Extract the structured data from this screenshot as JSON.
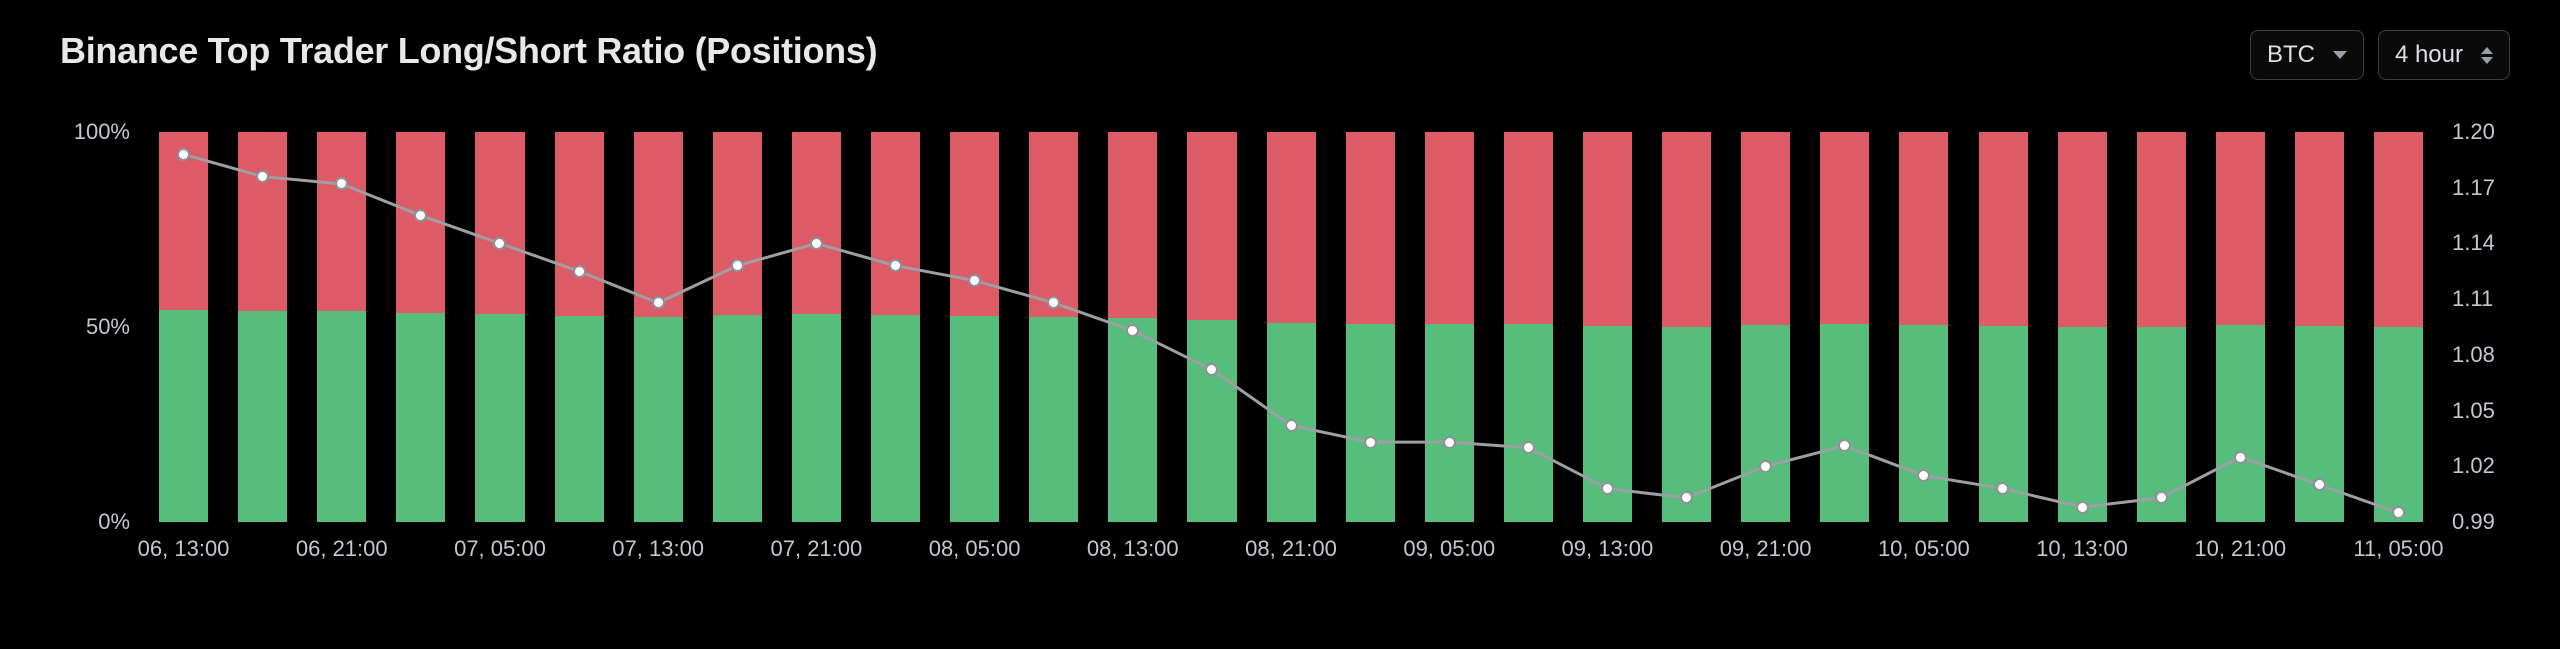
{
  "title": "Binance Top Trader Long/Short Ratio (Positions)",
  "controls": {
    "asset": "BTC",
    "interval": "4 hour"
  },
  "chart": {
    "type": "bar+line",
    "background_color": "#000000",
    "text_color": "#c4c8ce",
    "title_color": "#e8e8e8",
    "title_fontsize": 36,
    "axis_fontsize": 22,
    "long_color": "#56bd7c",
    "short_color": "#dc5b66",
    "line_color": "#9d9fa3",
    "marker_fill": "#ffffff",
    "marker_stroke": "#8f9196",
    "marker_radius": 6.5,
    "line_width": 3,
    "bar_width_ratio": 0.62,
    "left_axis": {
      "min": 0,
      "max": 100,
      "ticks": [
        0,
        50,
        100
      ],
      "tick_labels": [
        "0%",
        "50%",
        "100%"
      ]
    },
    "right_axis": {
      "min": 0.99,
      "max": 1.2,
      "ticks": [
        0.99,
        1.02,
        1.05,
        1.08,
        1.11,
        1.14,
        1.17,
        1.2
      ],
      "tick_labels": [
        "0.99",
        "1.02",
        "1.05",
        "1.08",
        "1.11",
        "1.14",
        "1.17",
        "1.20"
      ]
    },
    "x_ticks": [
      {
        "index": 0,
        "label": "06, 13:00"
      },
      {
        "index": 2,
        "label": "06, 21:00"
      },
      {
        "index": 4,
        "label": "07, 05:00"
      },
      {
        "index": 6,
        "label": "07, 13:00"
      },
      {
        "index": 8,
        "label": "07, 21:00"
      },
      {
        "index": 10,
        "label": "08, 05:00"
      },
      {
        "index": 12,
        "label": "08, 13:00"
      },
      {
        "index": 14,
        "label": "08, 21:00"
      },
      {
        "index": 16,
        "label": "09, 05:00"
      },
      {
        "index": 18,
        "label": "09, 13:00"
      },
      {
        "index": 20,
        "label": "09, 21:00"
      },
      {
        "index": 22,
        "label": "10, 05:00"
      },
      {
        "index": 24,
        "label": "10, 13:00"
      },
      {
        "index": 26,
        "label": "10, 21:00"
      },
      {
        "index": 28,
        "label": "11, 05:00"
      }
    ],
    "series": [
      {
        "long_pct": 54.3,
        "ratio": 1.188
      },
      {
        "long_pct": 54.1,
        "ratio": 1.176
      },
      {
        "long_pct": 54.0,
        "ratio": 1.172
      },
      {
        "long_pct": 53.6,
        "ratio": 1.155
      },
      {
        "long_pct": 53.3,
        "ratio": 1.14
      },
      {
        "long_pct": 52.9,
        "ratio": 1.125
      },
      {
        "long_pct": 52.5,
        "ratio": 1.108
      },
      {
        "long_pct": 53.0,
        "ratio": 1.128
      },
      {
        "long_pct": 53.3,
        "ratio": 1.14
      },
      {
        "long_pct": 53.0,
        "ratio": 1.128
      },
      {
        "long_pct": 52.8,
        "ratio": 1.12
      },
      {
        "long_pct": 52.5,
        "ratio": 1.108
      },
      {
        "long_pct": 52.2,
        "ratio": 1.093
      },
      {
        "long_pct": 51.7,
        "ratio": 1.072
      },
      {
        "long_pct": 51.0,
        "ratio": 1.042
      },
      {
        "long_pct": 50.8,
        "ratio": 1.033
      },
      {
        "long_pct": 50.8,
        "ratio": 1.033
      },
      {
        "long_pct": 50.7,
        "ratio": 1.03
      },
      {
        "long_pct": 50.2,
        "ratio": 1.008
      },
      {
        "long_pct": 50.1,
        "ratio": 1.003
      },
      {
        "long_pct": 50.5,
        "ratio": 1.02
      },
      {
        "long_pct": 50.8,
        "ratio": 1.031
      },
      {
        "long_pct": 50.4,
        "ratio": 1.015
      },
      {
        "long_pct": 50.2,
        "ratio": 1.008
      },
      {
        "long_pct": 50.0,
        "ratio": 0.998
      },
      {
        "long_pct": 50.1,
        "ratio": 1.003
      },
      {
        "long_pct": 50.6,
        "ratio": 1.025
      },
      {
        "long_pct": 50.3,
        "ratio": 1.01
      },
      {
        "long_pct": 49.9,
        "ratio": 0.995
      }
    ]
  }
}
